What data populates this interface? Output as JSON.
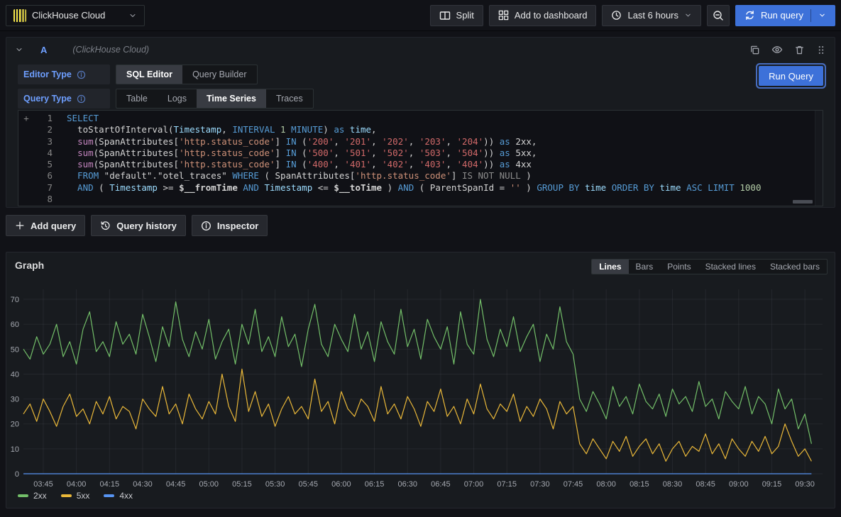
{
  "topbar": {
    "datasource_label": "ClickHouse Cloud",
    "split_label": "Split",
    "add_to_dashboard_label": "Add to dashboard",
    "time_range_label": "Last 6 hours",
    "run_query_label": "Run query"
  },
  "query_panel": {
    "ref_id": "A",
    "datasource_hint": "(ClickHouse Cloud)",
    "editor_type": {
      "label": "Editor Type",
      "options": [
        "SQL Editor",
        "Query Builder"
      ],
      "selected": "SQL Editor"
    },
    "query_type": {
      "label": "Query Type",
      "options": [
        "Table",
        "Logs",
        "Time Series",
        "Traces"
      ],
      "selected": "Time Series"
    },
    "run_query_label": "Run Query",
    "sql_lines": [
      [
        [
          "kw",
          "SELECT"
        ]
      ],
      [
        [
          "id",
          "  toStartOfInterval("
        ],
        [
          "type",
          "Timestamp"
        ],
        [
          "id",
          ", "
        ],
        [
          "kw",
          "INTERVAL"
        ],
        [
          "numlit",
          " 1 "
        ],
        [
          "kw",
          "MINUTE"
        ],
        [
          "id",
          ") "
        ],
        [
          "kw",
          "as"
        ],
        [
          "type",
          " time"
        ],
        [
          "id",
          ","
        ]
      ],
      [
        [
          "id",
          "  "
        ],
        [
          "fn",
          "sum"
        ],
        [
          "id",
          "(SpanAttributes["
        ],
        [
          "str",
          "'http.status_code'"
        ],
        [
          "id",
          "] "
        ],
        [
          "kw",
          "IN"
        ],
        [
          "id",
          " ("
        ],
        [
          "num",
          "'200'"
        ],
        [
          "id",
          ", "
        ],
        [
          "num",
          "'201'"
        ],
        [
          "id",
          ", "
        ],
        [
          "num",
          "'202'"
        ],
        [
          "id",
          ", "
        ],
        [
          "num",
          "'203'"
        ],
        [
          "id",
          ", "
        ],
        [
          "num",
          "'204'"
        ],
        [
          "id",
          ")) "
        ],
        [
          "kw",
          "as"
        ],
        [
          "id",
          " 2xx,"
        ]
      ],
      [
        [
          "id",
          "  "
        ],
        [
          "fn",
          "sum"
        ],
        [
          "id",
          "(SpanAttributes["
        ],
        [
          "str",
          "'http.status_code'"
        ],
        [
          "id",
          "] "
        ],
        [
          "kw",
          "IN"
        ],
        [
          "id",
          " ("
        ],
        [
          "num",
          "'500'"
        ],
        [
          "id",
          ", "
        ],
        [
          "num",
          "'501'"
        ],
        [
          "id",
          ", "
        ],
        [
          "num",
          "'502'"
        ],
        [
          "id",
          ", "
        ],
        [
          "num",
          "'503'"
        ],
        [
          "id",
          ", "
        ],
        [
          "num",
          "'504'"
        ],
        [
          "id",
          ")) "
        ],
        [
          "kw",
          "as"
        ],
        [
          "id",
          " 5xx,"
        ]
      ],
      [
        [
          "id",
          "  "
        ],
        [
          "fn",
          "sum"
        ],
        [
          "id",
          "(SpanAttributes["
        ],
        [
          "str",
          "'http.status_code'"
        ],
        [
          "id",
          "] "
        ],
        [
          "kw",
          "IN"
        ],
        [
          "id",
          " ("
        ],
        [
          "num",
          "'400'"
        ],
        [
          "id",
          ", "
        ],
        [
          "num",
          "'401'"
        ],
        [
          "id",
          ", "
        ],
        [
          "num",
          "'402'"
        ],
        [
          "id",
          ", "
        ],
        [
          "num",
          "'403'"
        ],
        [
          "id",
          ", "
        ],
        [
          "num",
          "'404'"
        ],
        [
          "id",
          ")) "
        ],
        [
          "kw",
          "as"
        ],
        [
          "id",
          " 4xx"
        ]
      ],
      [
        [
          "kw",
          "  FROM"
        ],
        [
          "id",
          " \"default\".\"otel_traces\" "
        ],
        [
          "kw",
          "WHERE"
        ],
        [
          "id",
          " ( SpanAttributes["
        ],
        [
          "str",
          "'http.status_code'"
        ],
        [
          "id",
          "] "
        ],
        [
          "gray",
          "IS NOT NULL"
        ],
        [
          "id",
          " )"
        ]
      ],
      [
        [
          "kw",
          "  AND"
        ],
        [
          "id",
          " ( "
        ],
        [
          "type",
          "Timestamp"
        ],
        [
          "id",
          " >= "
        ],
        [
          "var",
          "$__fromTime"
        ],
        [
          "kw",
          " AND"
        ],
        [
          "id",
          " "
        ],
        [
          "type",
          "Timestamp"
        ],
        [
          "id",
          " <= "
        ],
        [
          "var",
          "$__toTime"
        ],
        [
          "id",
          " ) "
        ],
        [
          "kw",
          "AND"
        ],
        [
          "id",
          " ( ParentSpanId = "
        ],
        [
          "str",
          "''"
        ],
        [
          "id",
          " ) "
        ],
        [
          "kw",
          "GROUP BY"
        ],
        [
          "type",
          " time"
        ],
        [
          "kw",
          " ORDER BY"
        ],
        [
          "type",
          " time"
        ],
        [
          "kw",
          " ASC LIMIT"
        ],
        [
          "numlit",
          " 1000"
        ]
      ],
      []
    ],
    "footer_buttons": [
      "Add query",
      "Query history",
      "Inspector"
    ]
  },
  "graph_panel": {
    "title": "Graph",
    "viz_modes": [
      "Lines",
      "Bars",
      "Points",
      "Stacked lines",
      "Stacked bars"
    ],
    "selected_mode": "Lines"
  },
  "chart_data": {
    "type": "line",
    "title": "Graph",
    "xlabel": "time",
    "ylabel": "",
    "grid": true,
    "legend_position": "bottom",
    "x_start_min": 216,
    "x_step_min": 3,
    "xlim_min": [
      216,
      578
    ],
    "ylim": [
      0,
      74
    ],
    "yticks": [
      0,
      10,
      20,
      30,
      40,
      50,
      60,
      70
    ],
    "xticks": {
      "start_min": 225,
      "step_min": 15,
      "labels": [
        "03:45",
        "04:00",
        "04:15",
        "04:30",
        "04:45",
        "05:00",
        "05:15",
        "05:30",
        "05:45",
        "06:00",
        "06:15",
        "06:30",
        "06:45",
        "07:00",
        "07:15",
        "07:30",
        "07:45",
        "08:00",
        "08:15",
        "08:30",
        "08:45",
        "09:00",
        "09:15",
        "09:30"
      ]
    },
    "series": [
      {
        "name": "2xx",
        "color": "#73BF69",
        "values": [
          50,
          46,
          55,
          48,
          52,
          60,
          47,
          53,
          44,
          58,
          65,
          49,
          53,
          47,
          61,
          52,
          56,
          48,
          64,
          55,
          45,
          59,
          51,
          69,
          54,
          47,
          57,
          50,
          62,
          46,
          53,
          58,
          44,
          60,
          52,
          66,
          49,
          55,
          47,
          63,
          51,
          56,
          43,
          58,
          68,
          52,
          47,
          60,
          54,
          49,
          64,
          50,
          57,
          45,
          61,
          53,
          48,
          66,
          51,
          58,
          46,
          62,
          55,
          50,
          59,
          44,
          65,
          52,
          48,
          70,
          54,
          47,
          58,
          51,
          63,
          49,
          55,
          60,
          45,
          56,
          50,
          67,
          53,
          48,
          30,
          25,
          33,
          28,
          22,
          35,
          27,
          31,
          24,
          36,
          29,
          26,
          32,
          23,
          34,
          28,
          31,
          25,
          37,
          27,
          30,
          22,
          33,
          29,
          26,
          35,
          24,
          31,
          28,
          20,
          34,
          26,
          30,
          18,
          24,
          12
        ]
      },
      {
        "name": "5xx",
        "color": "#EAB839",
        "values": [
          24,
          28,
          21,
          30,
          25,
          19,
          27,
          32,
          23,
          26,
          20,
          29,
          24,
          31,
          22,
          27,
          25,
          18,
          30,
          26,
          23,
          35,
          24,
          28,
          20,
          32,
          26,
          22,
          29,
          24,
          40,
          27,
          21,
          42,
          25,
          33,
          23,
          28,
          19,
          26,
          31,
          24,
          27,
          22,
          38,
          25,
          29,
          20,
          33,
          26,
          23,
          30,
          27,
          21,
          35,
          24,
          28,
          22,
          31,
          26,
          19,
          29,
          25,
          34,
          23,
          27,
          20,
          30,
          24,
          36,
          26,
          22,
          28,
          25,
          32,
          21,
          27,
          23,
          30,
          26,
          18,
          29,
          24,
          27,
          12,
          8,
          14,
          10,
          6,
          13,
          9,
          15,
          7,
          11,
          14,
          8,
          12,
          5,
          10,
          13,
          7,
          11,
          9,
          16,
          8,
          12,
          6,
          14,
          10,
          7,
          13,
          9,
          15,
          8,
          11,
          20,
          13,
          7,
          10,
          5
        ]
      },
      {
        "name": "4xx",
        "color": "#5794F2",
        "values": [
          0,
          0,
          0,
          0,
          0,
          0,
          0,
          0,
          0,
          0,
          0,
          0,
          0,
          0,
          0,
          0,
          0,
          0,
          0,
          0,
          0,
          0,
          0,
          0,
          0,
          0,
          0,
          0,
          0,
          0,
          0,
          0,
          0,
          0,
          0,
          0,
          0,
          0,
          0,
          0,
          0,
          0,
          0,
          0,
          0,
          0,
          0,
          0,
          0,
          0,
          0,
          0,
          0,
          0,
          0,
          0,
          0,
          0,
          0,
          0,
          0,
          0,
          0,
          0,
          0,
          0,
          0,
          0,
          0,
          0,
          0,
          0,
          0,
          0,
          0,
          0,
          0,
          0,
          0,
          0,
          0,
          0,
          0,
          0,
          0,
          0,
          0,
          0,
          0,
          0,
          0,
          0,
          0,
          0,
          0,
          0,
          0,
          0,
          0,
          0,
          0,
          0,
          0,
          0,
          0,
          0,
          0,
          0,
          0,
          0,
          0,
          0,
          0,
          0,
          0,
          0,
          0,
          0,
          0,
          0
        ]
      }
    ]
  }
}
